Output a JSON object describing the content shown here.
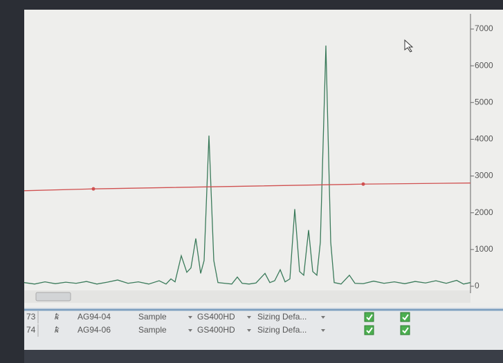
{
  "chart_data": {
    "type": "line",
    "series": [
      {
        "color": "#3a7a5a",
        "x": [
          0,
          15,
          30,
          45,
          60,
          75,
          90,
          105,
          120,
          135,
          150,
          165,
          180,
          195,
          205,
          212,
          218,
          227,
          235,
          241,
          248,
          255,
          260,
          267,
          274,
          280,
          290,
          300,
          308,
          315,
          325,
          335,
          348,
          355,
          362,
          370,
          377,
          384,
          391,
          398,
          404,
          411,
          417,
          423,
          428,
          436,
          443,
          448,
          458,
          470,
          478,
          490,
          505,
          520,
          535,
          550,
          565,
          580,
          595,
          610,
          625,
          635,
          645
        ],
        "values": [
          100,
          60,
          120,
          70,
          110,
          80,
          130,
          60,
          110,
          170,
          80,
          120,
          60,
          150,
          60,
          200,
          120,
          830,
          380,
          500,
          1300,
          350,
          700,
          4100,
          700,
          100,
          80,
          60,
          250,
          80,
          60,
          90,
          350,
          100,
          150,
          450,
          120,
          200,
          2100,
          400,
          300,
          1530,
          400,
          300,
          1200,
          6550,
          1200,
          100,
          60,
          300,
          80,
          70,
          140,
          80,
          120,
          70,
          130,
          90,
          150,
          80,
          160,
          60,
          100
        ]
      },
      {
        "color": "#d05050",
        "x": [
          0,
          100,
          490,
          645
        ],
        "values": [
          2600,
          2650,
          2780,
          2810
        ]
      }
    ],
    "xlim": [
      0,
      645
    ],
    "ylim": [
      0,
      7000
    ],
    "yticks": [
      0,
      1000,
      2000,
      3000,
      4000,
      5000,
      6000,
      7000
    ]
  },
  "table": {
    "rows": [
      [
        "73",
        "AG94-04",
        "Sample",
        "GS400HD",
        "Sizing Defa..."
      ],
      [
        "74",
        "AG94-06",
        "Sample",
        "GS400HD",
        "Sizing Defa..."
      ]
    ]
  }
}
